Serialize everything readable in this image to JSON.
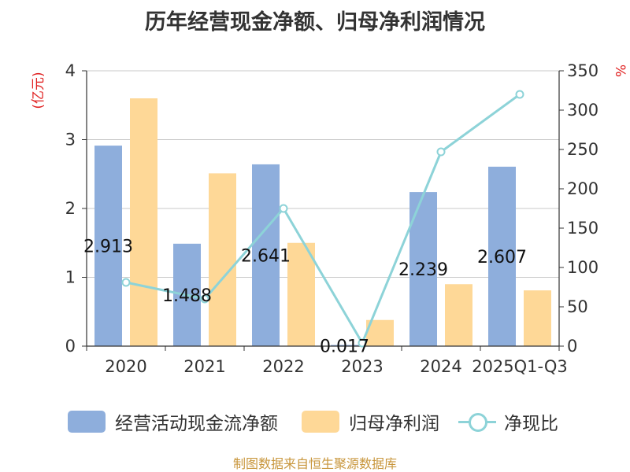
{
  "title": "历年经营现金净额、归母净利润情况",
  "source": "制图数据来自恒生聚源数据库",
  "colors": {
    "bar1": "#8eaedc",
    "bar2": "#fed897",
    "line": "#8dd3d8",
    "axis_unit": "#e02020"
  },
  "chart_data": {
    "type": "bar",
    "title": "历年经营现金净额、归母净利润情况",
    "categories": [
      "2020",
      "2021",
      "2022",
      "2023",
      "2024",
      "2025Q1-Q3"
    ],
    "left_axis": {
      "unit": "(亿元)",
      "ylim": [
        0,
        4
      ],
      "ticks": [
        "0",
        "1",
        "2",
        "3",
        "4"
      ]
    },
    "right_axis": {
      "unit": "%",
      "ylim": [
        0,
        350
      ],
      "ticks": [
        "0",
        "50",
        "100",
        "150",
        "200",
        "250",
        "300",
        "350"
      ]
    },
    "series": [
      {
        "name": "经营活动现金流净额",
        "type": "bar",
        "axis": "left",
        "values": [
          2.913,
          1.488,
          2.641,
          0.017,
          2.239,
          2.607
        ],
        "labels": [
          "2.913",
          "1.488",
          "2.641",
          "0.017",
          "2.239",
          "2.607"
        ]
      },
      {
        "name": "归母净利润",
        "type": "bar",
        "axis": "left",
        "values": [
          3.6,
          2.51,
          1.5,
          0.38,
          0.9,
          0.81
        ]
      },
      {
        "name": "净现比",
        "type": "line",
        "axis": "right",
        "values": [
          81,
          60,
          175,
          4,
          247,
          320
        ]
      }
    ],
    "grid": true,
    "legend_position": "bottom"
  }
}
